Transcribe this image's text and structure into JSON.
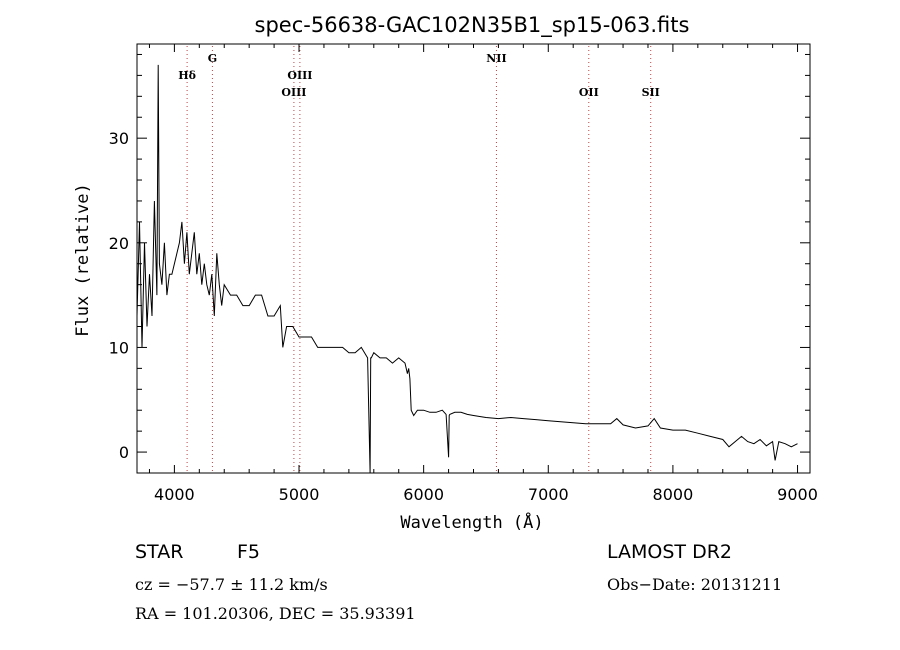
{
  "chart_data": {
    "type": "line",
    "title": "spec-56638-GAC102N35B1_sp15-063.fits",
    "xlabel": "Wavelength (Å)",
    "ylabel": "Flux (relative)",
    "xlim": [
      3700,
      9100
    ],
    "ylim": [
      -2,
      39
    ],
    "x_ticks": [
      4000,
      5000,
      6000,
      7000,
      8000,
      9000
    ],
    "y_ticks": [
      0,
      10,
      20,
      30
    ],
    "grid": false,
    "series": [
      {
        "x": [
          3700,
          3720,
          3740,
          3760,
          3780,
          3800,
          3820,
          3840,
          3860,
          3870,
          3880,
          3900,
          3920,
          3940,
          3960,
          3980,
          4000,
          4020,
          4040,
          4060,
          4080,
          4100,
          4120,
          4140,
          4160,
          4180,
          4200,
          4220,
          4240,
          4260,
          4280,
          4300,
          4320,
          4340,
          4360,
          4380,
          4400,
          4450,
          4500,
          4550,
          4600,
          4650,
          4700,
          4750,
          4800,
          4850,
          4870,
          4900,
          4950,
          5000,
          5050,
          5100,
          5150,
          5200,
          5250,
          5300,
          5350,
          5400,
          5450,
          5500,
          5550,
          5570,
          5575,
          5580,
          5600,
          5650,
          5700,
          5750,
          5800,
          5850,
          5870,
          5880,
          5890,
          5900,
          5920,
          5950,
          6000,
          6050,
          6100,
          6150,
          6180,
          6200,
          6205,
          6210,
          6250,
          6300,
          6350,
          6400,
          6450,
          6500,
          6600,
          6700,
          6800,
          6900,
          7000,
          7100,
          7200,
          7300,
          7400,
          7500,
          7550,
          7600,
          7700,
          7800,
          7850,
          7900,
          8000,
          8100,
          8200,
          8300,
          8400,
          8450,
          8500,
          8550,
          8600,
          8650,
          8700,
          8750,
          8800,
          8820,
          8850,
          8900,
          8950,
          9000
        ],
        "y": [
          13,
          22,
          10,
          20,
          12,
          17,
          13,
          24,
          15,
          37,
          18,
          16,
          20,
          15,
          17,
          17,
          18,
          19,
          20,
          22,
          18,
          21,
          17,
          19,
          21,
          17,
          19,
          16,
          18,
          16,
          15,
          17,
          13,
          19,
          16,
          14,
          16,
          15,
          15,
          14,
          14,
          15,
          15,
          13,
          13,
          14,
          10,
          12,
          12,
          11,
          11,
          11,
          10,
          10,
          10,
          10,
          10,
          9.5,
          9.5,
          10,
          9,
          -2,
          9,
          9,
          9.5,
          9,
          9,
          8.5,
          9,
          8.5,
          7.5,
          8,
          7,
          4,
          3.5,
          4,
          4,
          3.8,
          3.8,
          4,
          3.6,
          -0.5,
          3.5,
          3.6,
          3.8,
          3.8,
          3.6,
          3.5,
          3.4,
          3.3,
          3.2,
          3.3,
          3.2,
          3.1,
          3.0,
          2.9,
          2.8,
          2.7,
          2.7,
          2.7,
          3.2,
          2.6,
          2.3,
          2.5,
          3.2,
          2.3,
          2.1,
          2.1,
          1.8,
          1.5,
          1.2,
          0.5,
          1.0,
          1.5,
          1.0,
          0.8,
          1.2,
          0.6,
          1.0,
          -0.8,
          1.0,
          0.8,
          0.5,
          0.8
        ]
      }
    ],
    "line_markers": [
      {
        "label": "Hδ",
        "x": 4102,
        "row": 1
      },
      {
        "label": "G",
        "x": 4305,
        "row": 0
      },
      {
        "label": "OIII",
        "x": 4959,
        "row": 2
      },
      {
        "label": "OIII",
        "x": 5007,
        "row": 1
      },
      {
        "label": "NII",
        "x": 6584,
        "row": 0
      },
      {
        "label": "OII",
        "x": 7325,
        "row": 2
      },
      {
        "label": "SII",
        "x": 7822,
        "row": 2
      }
    ]
  },
  "info": {
    "class_label": "STAR",
    "subclass_label": "F5",
    "survey_label": "LAMOST DR2",
    "cz_text": "cz = −57.7 ± 11.2 km/s",
    "obs_date_text": "Obs−Date: 20131211",
    "radec_text": "RA = 101.20306, DEC =  35.93391"
  }
}
